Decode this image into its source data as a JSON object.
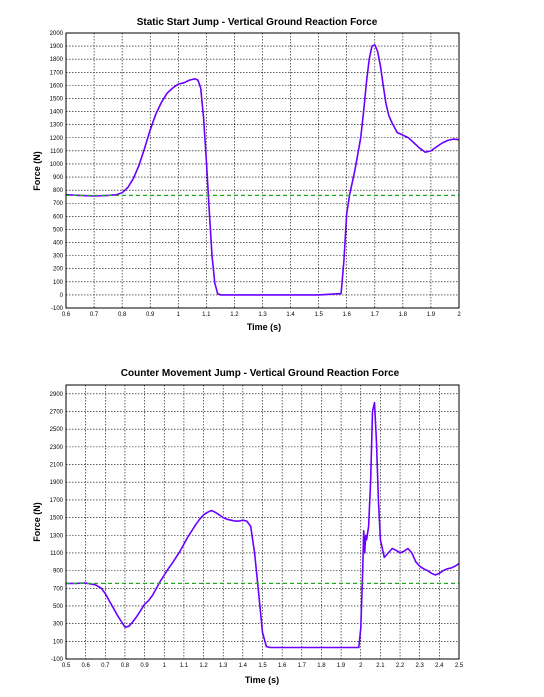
{
  "chart_data": [
    {
      "type": "line",
      "title": "Static Start Jump - Vertical Ground Reaction Force",
      "xlabel": "Time (s)",
      "ylabel": "Force (N)",
      "xlim": [
        0.6,
        2.0
      ],
      "ylim": [
        -100,
        2000
      ],
      "xticks": [
        0.6,
        0.7,
        0.8,
        0.9,
        1.0,
        1.1,
        1.2,
        1.3,
        1.4,
        1.5,
        1.6,
        1.7,
        1.8,
        1.9,
        2.0
      ],
      "xtick_labels": [
        "0.6",
        "0.7",
        "0.8",
        "0.9",
        "1",
        "1.1",
        "1.2",
        "1.3",
        "1.4",
        "1.5",
        "1.6",
        "1.7",
        "1.8",
        "1.9",
        "2"
      ],
      "yticks": [
        -100,
        0,
        100,
        200,
        300,
        400,
        500,
        600,
        700,
        800,
        900,
        1000,
        1100,
        1200,
        1300,
        1400,
        1500,
        1600,
        1700,
        1800,
        1900,
        2000
      ],
      "ytick_labels": [
        "-100",
        "0",
        "100",
        "200",
        "300",
        "400",
        "500",
        "600",
        "700",
        "800",
        "900",
        "1000",
        "1100",
        "1200",
        "1300",
        "1400",
        "1500",
        "1600",
        "1700",
        "1800",
        "1900",
        "2000"
      ],
      "grid": true,
      "series": [
        {
          "color": "#6a00ff",
          "x": [
            0.6,
            0.65,
            0.7,
            0.75,
            0.78,
            0.8,
            0.82,
            0.84,
            0.86,
            0.88,
            0.9,
            0.92,
            0.94,
            0.96,
            0.98,
            1.0,
            1.02,
            1.04,
            1.06,
            1.07,
            1.08,
            1.09,
            1.1,
            1.11,
            1.12,
            1.13,
            1.14,
            1.15,
            1.2,
            1.3,
            1.4,
            1.5,
            1.58,
            1.59,
            1.6,
            1.61,
            1.62,
            1.63,
            1.64,
            1.65,
            1.66,
            1.67,
            1.68,
            1.69,
            1.7,
            1.71,
            1.72,
            1.73,
            1.74,
            1.75,
            1.76,
            1.78,
            1.8,
            1.82,
            1.84,
            1.86,
            1.88,
            1.9,
            1.92,
            1.94,
            1.96,
            1.98,
            2.0
          ],
          "y": [
            765,
            760,
            755,
            760,
            765,
            780,
            820,
            890,
            990,
            1120,
            1260,
            1380,
            1470,
            1540,
            1580,
            1610,
            1620,
            1640,
            1650,
            1640,
            1580,
            1350,
            1020,
            650,
            300,
            90,
            10,
            0,
            0,
            0,
            0,
            0,
            10,
            260,
            620,
            760,
            860,
            960,
            1080,
            1200,
            1400,
            1620,
            1800,
            1900,
            1910,
            1860,
            1750,
            1600,
            1460,
            1370,
            1320,
            1240,
            1220,
            1200,
            1160,
            1120,
            1090,
            1100,
            1130,
            1160,
            1180,
            1190,
            1185
          ]
        },
        {
          "name": "",
          "color": "#22aa22",
          "style": "dashed",
          "x": [
            0.6,
            2.0
          ],
          "y": [
            760,
            760
          ]
        }
      ]
    },
    {
      "type": "line",
      "title": "Counter Movement Jump - Vertical Ground Reaction Force",
      "xlabel": "Time (s)",
      "ylabel": "Force (N)",
      "xlim": [
        0.5,
        2.5
      ],
      "ylim": [
        -100,
        3000
      ],
      "xticks": [
        0.5,
        0.6,
        0.7,
        0.8,
        0.9,
        1.0,
        1.1,
        1.2,
        1.3,
        1.4,
        1.5,
        1.6,
        1.7,
        1.8,
        1.9,
        2.0,
        2.1,
        2.2,
        2.3,
        2.4,
        2.5
      ],
      "xtick_labels": [
        "0.5",
        "0.6",
        "0.7",
        "0.8",
        "0.9",
        "1",
        "1.1",
        "1.2",
        "1.3",
        "1.4",
        "1.5",
        "1.6",
        "1.7",
        "1.8",
        "1.9",
        "2",
        "2.1",
        "2.2",
        "2.3",
        "2.4",
        "2.5"
      ],
      "yticks": [
        -100,
        100,
        300,
        500,
        700,
        900,
        1100,
        1300,
        1500,
        1700,
        1900,
        2100,
        2300,
        2500,
        2700,
        2900
      ],
      "ytick_labels": [
        "-100",
        "100",
        "300",
        "500",
        "700",
        "900",
        "1100",
        "1300",
        "1500",
        "1700",
        "1900",
        "2100",
        "2300",
        "2500",
        "2700",
        "2900"
      ],
      "grid": true,
      "series": [
        {
          "color": "#6a00ff",
          "x": [
            0.5,
            0.55,
            0.6,
            0.65,
            0.68,
            0.7,
            0.72,
            0.74,
            0.76,
            0.78,
            0.8,
            0.82,
            0.84,
            0.86,
            0.88,
            0.9,
            0.92,
            0.94,
            0.96,
            0.98,
            1.0,
            1.02,
            1.04,
            1.06,
            1.08,
            1.1,
            1.12,
            1.14,
            1.16,
            1.18,
            1.2,
            1.22,
            1.24,
            1.26,
            1.28,
            1.3,
            1.32,
            1.34,
            1.36,
            1.38,
            1.4,
            1.42,
            1.44,
            1.46,
            1.48,
            1.5,
            1.52,
            1.54,
            1.6,
            1.7,
            1.8,
            1.9,
            1.99,
            2.0,
            2.01,
            2.015,
            2.02,
            2.025,
            2.03,
            2.04,
            2.05,
            2.06,
            2.07,
            2.08,
            2.09,
            2.1,
            2.12,
            2.14,
            2.16,
            2.18,
            2.2,
            2.22,
            2.24,
            2.26,
            2.28,
            2.3,
            2.32,
            2.34,
            2.36,
            2.38,
            2.4,
            2.42,
            2.44,
            2.46,
            2.48,
            2.5
          ],
          "y": [
            755,
            755,
            760,
            740,
            700,
            640,
            560,
            480,
            400,
            330,
            260,
            270,
            320,
            380,
            450,
            520,
            560,
            620,
            700,
            780,
            850,
            920,
            980,
            1050,
            1120,
            1200,
            1280,
            1350,
            1420,
            1480,
            1530,
            1560,
            1580,
            1560,
            1530,
            1500,
            1480,
            1470,
            1460,
            1460,
            1470,
            1460,
            1400,
            1100,
            650,
            200,
            40,
            30,
            30,
            30,
            30,
            30,
            30,
            250,
            900,
            1350,
            1100,
            1300,
            1250,
            1400,
            1900,
            2700,
            2800,
            2350,
            1700,
            1250,
            1050,
            1100,
            1150,
            1130,
            1100,
            1120,
            1150,
            1100,
            1000,
            950,
            920,
            900,
            870,
            850,
            870,
            900,
            920,
            930,
            950,
            980
          ]
        },
        {
          "name": "",
          "color": "#22aa22",
          "style": "dashed",
          "x": [
            0.5,
            2.5
          ],
          "y": [
            755,
            755
          ]
        }
      ]
    }
  ]
}
